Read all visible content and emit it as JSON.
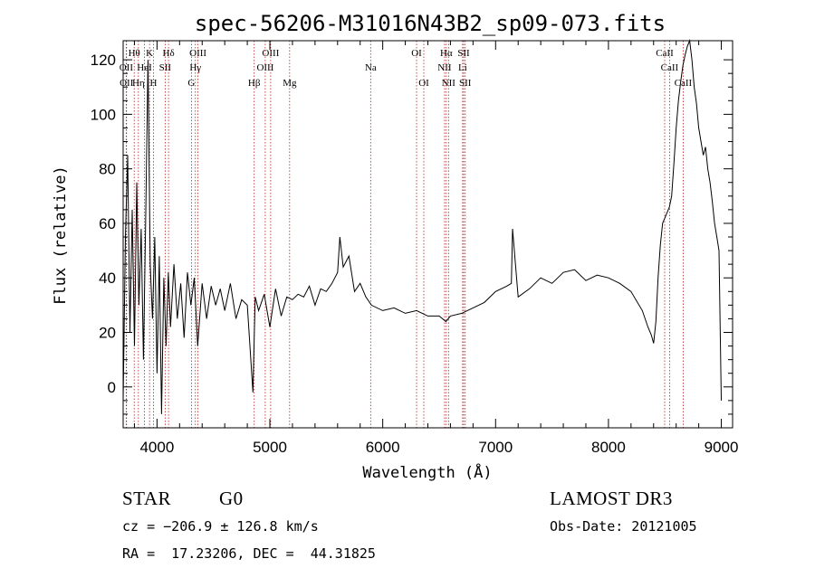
{
  "chart_data": {
    "type": "line",
    "title": "spec-56206-M31016N43B2_sp09-073.fits",
    "xlabel": "Wavelength (Å)",
    "ylabel": "Flux (relative)",
    "xlim": [
      3700,
      9100
    ],
    "ylim": [
      -15,
      127
    ],
    "x_ticks": [
      4000,
      5000,
      6000,
      7000,
      8000,
      9000
    ],
    "y_ticks": [
      0,
      20,
      40,
      60,
      80,
      100,
      120
    ],
    "colors": {
      "line": "#000000",
      "markers": "#b22222"
    },
    "series": [
      {
        "name": "spectrum",
        "x": [
          3700,
          3720,
          3740,
          3760,
          3780,
          3800,
          3820,
          3840,
          3860,
          3880,
          3900,
          3920,
          3940,
          3960,
          3980,
          4000,
          4020,
          4040,
          4060,
          4080,
          4100,
          4120,
          4150,
          4180,
          4210,
          4240,
          4270,
          4300,
          4330,
          4360,
          4400,
          4440,
          4480,
          4520,
          4560,
          4600,
          4650,
          4700,
          4750,
          4800,
          4850,
          4870,
          4900,
          4950,
          5000,
          5050,
          5100,
          5150,
          5200,
          5250,
          5300,
          5350,
          5400,
          5450,
          5500,
          5550,
          5600,
          5620,
          5650,
          5700,
          5750,
          5800,
          5850,
          5900,
          6000,
          6100,
          6200,
          6300,
          6400,
          6500,
          6560,
          6600,
          6700,
          6800,
          6900,
          7000,
          7100,
          7140,
          7150,
          7200,
          7300,
          7400,
          7500,
          7600,
          7700,
          7800,
          7900,
          8000,
          8100,
          8200,
          8300,
          8350,
          8380,
          8400,
          8420,
          8440,
          8460,
          8480,
          8500,
          8520,
          8540,
          8560,
          8580,
          8600,
          8620,
          8640,
          8660,
          8680,
          8700,
          8720,
          8740,
          8760,
          8780,
          8800,
          8820,
          8840,
          8860,
          8880,
          8900,
          8920,
          8940,
          8960,
          8980,
          9000
        ],
        "y": [
          -5,
          55,
          85,
          20,
          65,
          15,
          75,
          30,
          58,
          10,
          62,
          120,
          45,
          25,
          55,
          5,
          48,
          -10,
          40,
          15,
          42,
          22,
          45,
          25,
          38,
          18,
          42,
          30,
          40,
          15,
          38,
          25,
          37,
          30,
          36,
          28,
          38,
          25,
          32,
          30,
          -2,
          33,
          28,
          34,
          22,
          36,
          26,
          33,
          32,
          34,
          33,
          37,
          30,
          36,
          35,
          38,
          42,
          55,
          44,
          48,
          35,
          38,
          33,
          30,
          28,
          29,
          27,
          28,
          26,
          26,
          24,
          26,
          27,
          29,
          31,
          35,
          37,
          38,
          58,
          33,
          36,
          40,
          38,
          42,
          43,
          39,
          41,
          40,
          38,
          35,
          28,
          22,
          19,
          16,
          24,
          40,
          52,
          60,
          62,
          64,
          66,
          70,
          82,
          95,
          105,
          112,
          118,
          122,
          125,
          127,
          120,
          110,
          104,
          95,
          90,
          85,
          88,
          80,
          75,
          68,
          60,
          55,
          50,
          -5
        ]
      }
    ],
    "annotations": [
      {
        "label": "Hθ",
        "x": 3798,
        "row": 1
      },
      {
        "label": "K",
        "x": 3934,
        "row": 1
      },
      {
        "label": "Hδ",
        "x": 4102,
        "row": 1
      },
      {
        "label": "OIII",
        "x": 4363,
        "row": 1
      },
      {
        "label": "OIII",
        "x": 5007,
        "row": 1
      },
      {
        "label": "OI",
        "x": 6300,
        "row": 1
      },
      {
        "label": "Hα",
        "x": 6563,
        "row": 1
      },
      {
        "label": "SII",
        "x": 6717,
        "row": 1
      },
      {
        "label": "CaII",
        "x": 8498,
        "row": 1
      },
      {
        "label": "OII",
        "x": 3727,
        "row": 2
      },
      {
        "label": "HeI",
        "x": 3889,
        "row": 2
      },
      {
        "label": "SII",
        "x": 4072,
        "row": 2
      },
      {
        "label": "Hγ",
        "x": 4340,
        "row": 2
      },
      {
        "label": "OIII",
        "x": 4959,
        "row": 2
      },
      {
        "label": "Na",
        "x": 5893,
        "row": 2
      },
      {
        "label": "NII",
        "x": 6548,
        "row": 2
      },
      {
        "label": "Li",
        "x": 6708,
        "row": 2
      },
      {
        "label": "CaII",
        "x": 8542,
        "row": 2
      },
      {
        "label": "OII",
        "x": 3730,
        "row": 3
      },
      {
        "label": "Hη",
        "x": 3835,
        "row": 3
      },
      {
        "label": "H",
        "x": 3969,
        "row": 3
      },
      {
        "label": "G",
        "x": 4305,
        "row": 3
      },
      {
        "label": "Hβ",
        "x": 4861,
        "row": 3
      },
      {
        "label": "Mg",
        "x": 5175,
        "row": 3
      },
      {
        "label": "OI",
        "x": 6364,
        "row": 3
      },
      {
        "label": "NII",
        "x": 6583,
        "row": 3
      },
      {
        "label": "SII",
        "x": 6731,
        "row": 3
      },
      {
        "label": "CaII",
        "x": 8662,
        "row": 3
      }
    ]
  },
  "info": {
    "object_class": "STAR",
    "subclass": "G0",
    "survey": "LAMOST DR3",
    "redshift": "cz = −206.9 ± 126.8 km/s",
    "obs_date": "Obs-Date: 20121005",
    "coords": "RA =  17.23206, DEC =  44.31825"
  }
}
